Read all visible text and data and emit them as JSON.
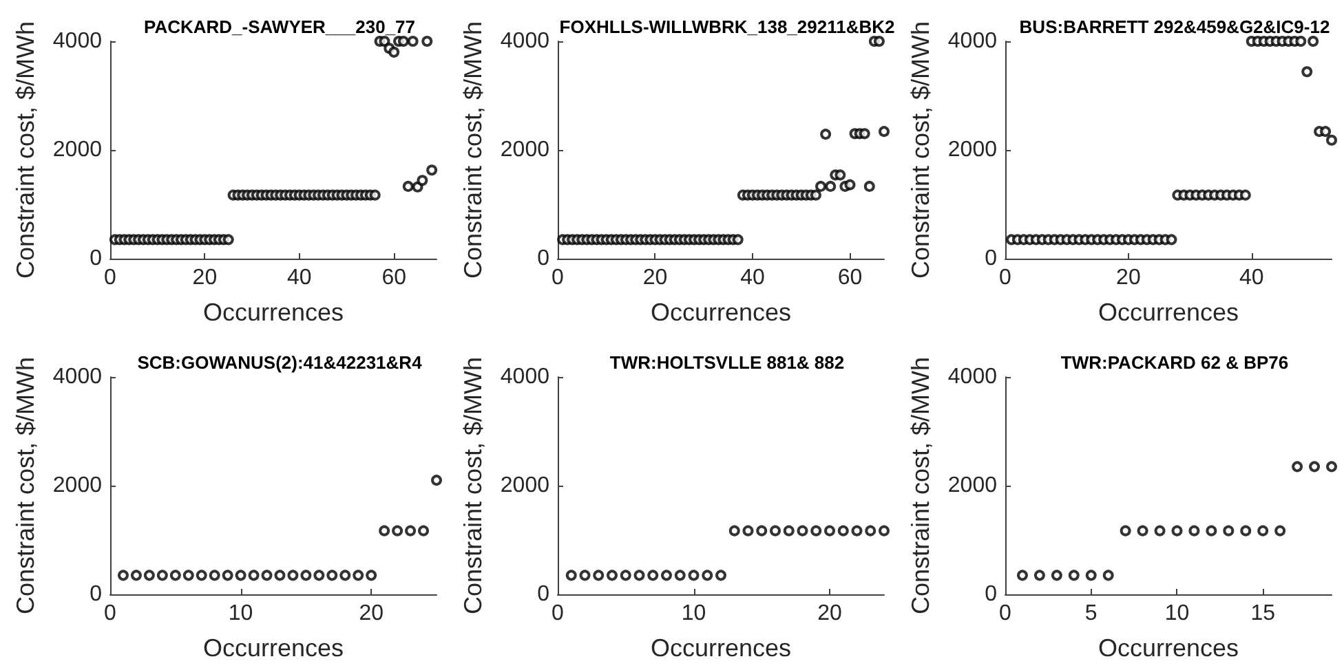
{
  "chart_data": [
    {
      "type": "scatter",
      "title": "PACKARD_-SAWYER___230_77",
      "xlabel": "Occurrences",
      "ylabel": "Constraint cost, $/MWh",
      "marker": "circle",
      "color": "#000000",
      "xlim": [
        0,
        69
      ],
      "xticks": [
        0,
        20,
        40,
        60
      ],
      "ylim": [
        0,
        4000
      ],
      "yticks": [
        0,
        2000,
        4000
      ],
      "grid": false,
      "x": [
        1,
        2,
        3,
        4,
        5,
        6,
        7,
        8,
        9,
        10,
        11,
        12,
        13,
        14,
        15,
        16,
        17,
        18,
        19,
        20,
        21,
        22,
        23,
        24,
        25,
        26,
        27,
        28,
        29,
        30,
        31,
        32,
        33,
        34,
        35,
        36,
        37,
        38,
        39,
        40,
        41,
        42,
        43,
        44,
        45,
        46,
        47,
        48,
        49,
        50,
        51,
        52,
        53,
        54,
        55,
        56,
        57,
        58,
        59,
        60,
        61,
        62,
        63,
        64,
        65,
        66,
        67,
        68
      ],
      "values": [
        350,
        350,
        350,
        350,
        350,
        350,
        350,
        350,
        350,
        350,
        350,
        350,
        350,
        350,
        350,
        350,
        350,
        350,
        350,
        350,
        350,
        350,
        350,
        350,
        350,
        1170,
        1170,
        1170,
        1170,
        1170,
        1170,
        1170,
        1170,
        1170,
        1170,
        1170,
        1170,
        1170,
        1170,
        1170,
        1170,
        1170,
        1170,
        1170,
        1170,
        1170,
        1170,
        1170,
        1170,
        1170,
        1170,
        1170,
        1170,
        1170,
        1170,
        1170,
        4000,
        4000,
        3870,
        3800,
        4000,
        4000,
        1330,
        4000,
        1320,
        1440,
        4000,
        1630
      ]
    },
    {
      "type": "scatter",
      "title": "FOXHLLS-WILLWBRK_138_29211&BK2",
      "xlabel": "Occurrences",
      "ylabel": "Constraint cost, $/MWh",
      "marker": "circle",
      "color": "#000000",
      "xlim": [
        0,
        67
      ],
      "xticks": [
        0,
        20,
        40,
        60
      ],
      "ylim": [
        0,
        4000
      ],
      "yticks": [
        0,
        2000,
        4000
      ],
      "grid": false,
      "x": [
        1,
        2,
        3,
        4,
        5,
        6,
        7,
        8,
        9,
        10,
        11,
        12,
        13,
        14,
        15,
        16,
        17,
        18,
        19,
        20,
        21,
        22,
        23,
        24,
        25,
        26,
        27,
        28,
        29,
        30,
        31,
        32,
        33,
        34,
        35,
        36,
        37,
        38,
        39,
        40,
        41,
        42,
        43,
        44,
        45,
        46,
        47,
        48,
        49,
        50,
        51,
        52,
        53,
        54,
        55,
        56,
        57,
        58,
        59,
        60,
        61,
        62,
        63,
        64,
        65,
        66,
        67
      ],
      "values": [
        350,
        350,
        350,
        350,
        350,
        350,
        350,
        350,
        350,
        350,
        350,
        350,
        350,
        350,
        350,
        350,
        350,
        350,
        350,
        350,
        350,
        350,
        350,
        350,
        350,
        350,
        350,
        350,
        350,
        350,
        350,
        350,
        350,
        350,
        350,
        350,
        350,
        1170,
        1170,
        1170,
        1170,
        1170,
        1170,
        1170,
        1170,
        1170,
        1170,
        1170,
        1170,
        1170,
        1170,
        1170,
        1170,
        1330,
        2290,
        1330,
        1540,
        1540,
        1330,
        1360,
        2300,
        2300,
        2300,
        1330,
        4000,
        4000,
        2340
      ]
    },
    {
      "type": "scatter",
      "title": "BUS:BARRETT 292&459&G2&IC9-12",
      "xlabel": "Occurrences",
      "ylabel": "Constraint cost, $/MWh",
      "marker": "circle",
      "color": "#000000",
      "xlim": [
        0,
        53
      ],
      "xticks": [
        0,
        20,
        40
      ],
      "ylim": [
        0,
        4000
      ],
      "yticks": [
        0,
        2000,
        4000
      ],
      "grid": false,
      "x": [
        1,
        2,
        3,
        4,
        5,
        6,
        7,
        8,
        9,
        10,
        11,
        12,
        13,
        14,
        15,
        16,
        17,
        18,
        19,
        20,
        21,
        22,
        23,
        24,
        25,
        26,
        27,
        28,
        29,
        30,
        31,
        32,
        33,
        34,
        35,
        36,
        37,
        38,
        39,
        40,
        41,
        42,
        43,
        44,
        45,
        46,
        47,
        48,
        49,
        50,
        51,
        52,
        53
      ],
      "values": [
        350,
        350,
        350,
        350,
        350,
        350,
        350,
        350,
        350,
        350,
        350,
        350,
        350,
        350,
        350,
        350,
        350,
        350,
        350,
        350,
        350,
        350,
        350,
        350,
        350,
        350,
        350,
        1170,
        1170,
        1170,
        1170,
        1170,
        1170,
        1170,
        1170,
        1170,
        1170,
        1170,
        1170,
        4000,
        4000,
        4000,
        4000,
        4000,
        4000,
        4000,
        4000,
        4000,
        3440,
        4000,
        2340,
        2340,
        2180
      ]
    },
    {
      "type": "scatter",
      "title": "SCB:GOWANUS(2):41&42231&R4",
      "xlabel": "Occurrences",
      "ylabel": "Constraint cost, $/MWh",
      "marker": "circle",
      "color": "#000000",
      "xlim": [
        0,
        25
      ],
      "xticks": [
        0,
        10,
        20
      ],
      "ylim": [
        0,
        4000
      ],
      "yticks": [
        0,
        2000,
        4000
      ],
      "grid": false,
      "x": [
        1,
        2,
        3,
        4,
        5,
        6,
        7,
        8,
        9,
        10,
        11,
        12,
        13,
        14,
        15,
        16,
        17,
        18,
        19,
        20,
        21,
        22,
        23,
        24,
        25
      ],
      "values": [
        350,
        350,
        350,
        350,
        350,
        350,
        350,
        350,
        350,
        350,
        350,
        350,
        350,
        350,
        350,
        350,
        350,
        350,
        350,
        350,
        1170,
        1170,
        1170,
        1170,
        2100
      ]
    },
    {
      "type": "scatter",
      "title": "TWR:HOLTSVLLE 881& 882",
      "xlabel": "Occurrences",
      "ylabel": "Constraint cost, $/MWh",
      "marker": "circle",
      "color": "#000000",
      "xlim": [
        0,
        24
      ],
      "xticks": [
        0,
        10,
        20
      ],
      "ylim": [
        0,
        4000
      ],
      "yticks": [
        0,
        2000,
        4000
      ],
      "grid": false,
      "x": [
        1,
        2,
        3,
        4,
        5,
        6,
        7,
        8,
        9,
        10,
        11,
        12,
        13,
        14,
        15,
        16,
        17,
        18,
        19,
        20,
        21,
        22,
        23,
        24
      ],
      "values": [
        350,
        350,
        350,
        350,
        350,
        350,
        350,
        350,
        350,
        350,
        350,
        350,
        1170,
        1170,
        1170,
        1170,
        1170,
        1170,
        1170,
        1170,
        1170,
        1170,
        1170,
        1170
      ]
    },
    {
      "type": "scatter",
      "title": "TWR:PACKARD 62 & BP76",
      "xlabel": "Occurrences",
      "ylabel": "Constraint cost, $/MWh",
      "marker": "circle",
      "color": "#000000",
      "xlim": [
        0,
        19
      ],
      "xticks": [
        0,
        5,
        10,
        15
      ],
      "ylim": [
        0,
        4000
      ],
      "yticks": [
        0,
        2000,
        4000
      ],
      "grid": false,
      "x": [
        1,
        2,
        3,
        4,
        5,
        6,
        7,
        8,
        9,
        10,
        11,
        12,
        13,
        14,
        15,
        16,
        17,
        18,
        19
      ],
      "values": [
        350,
        350,
        350,
        350,
        350,
        350,
        1170,
        1170,
        1170,
        1170,
        1170,
        1170,
        1170,
        1170,
        1170,
        1170,
        2350,
        2350,
        2350
      ]
    }
  ]
}
